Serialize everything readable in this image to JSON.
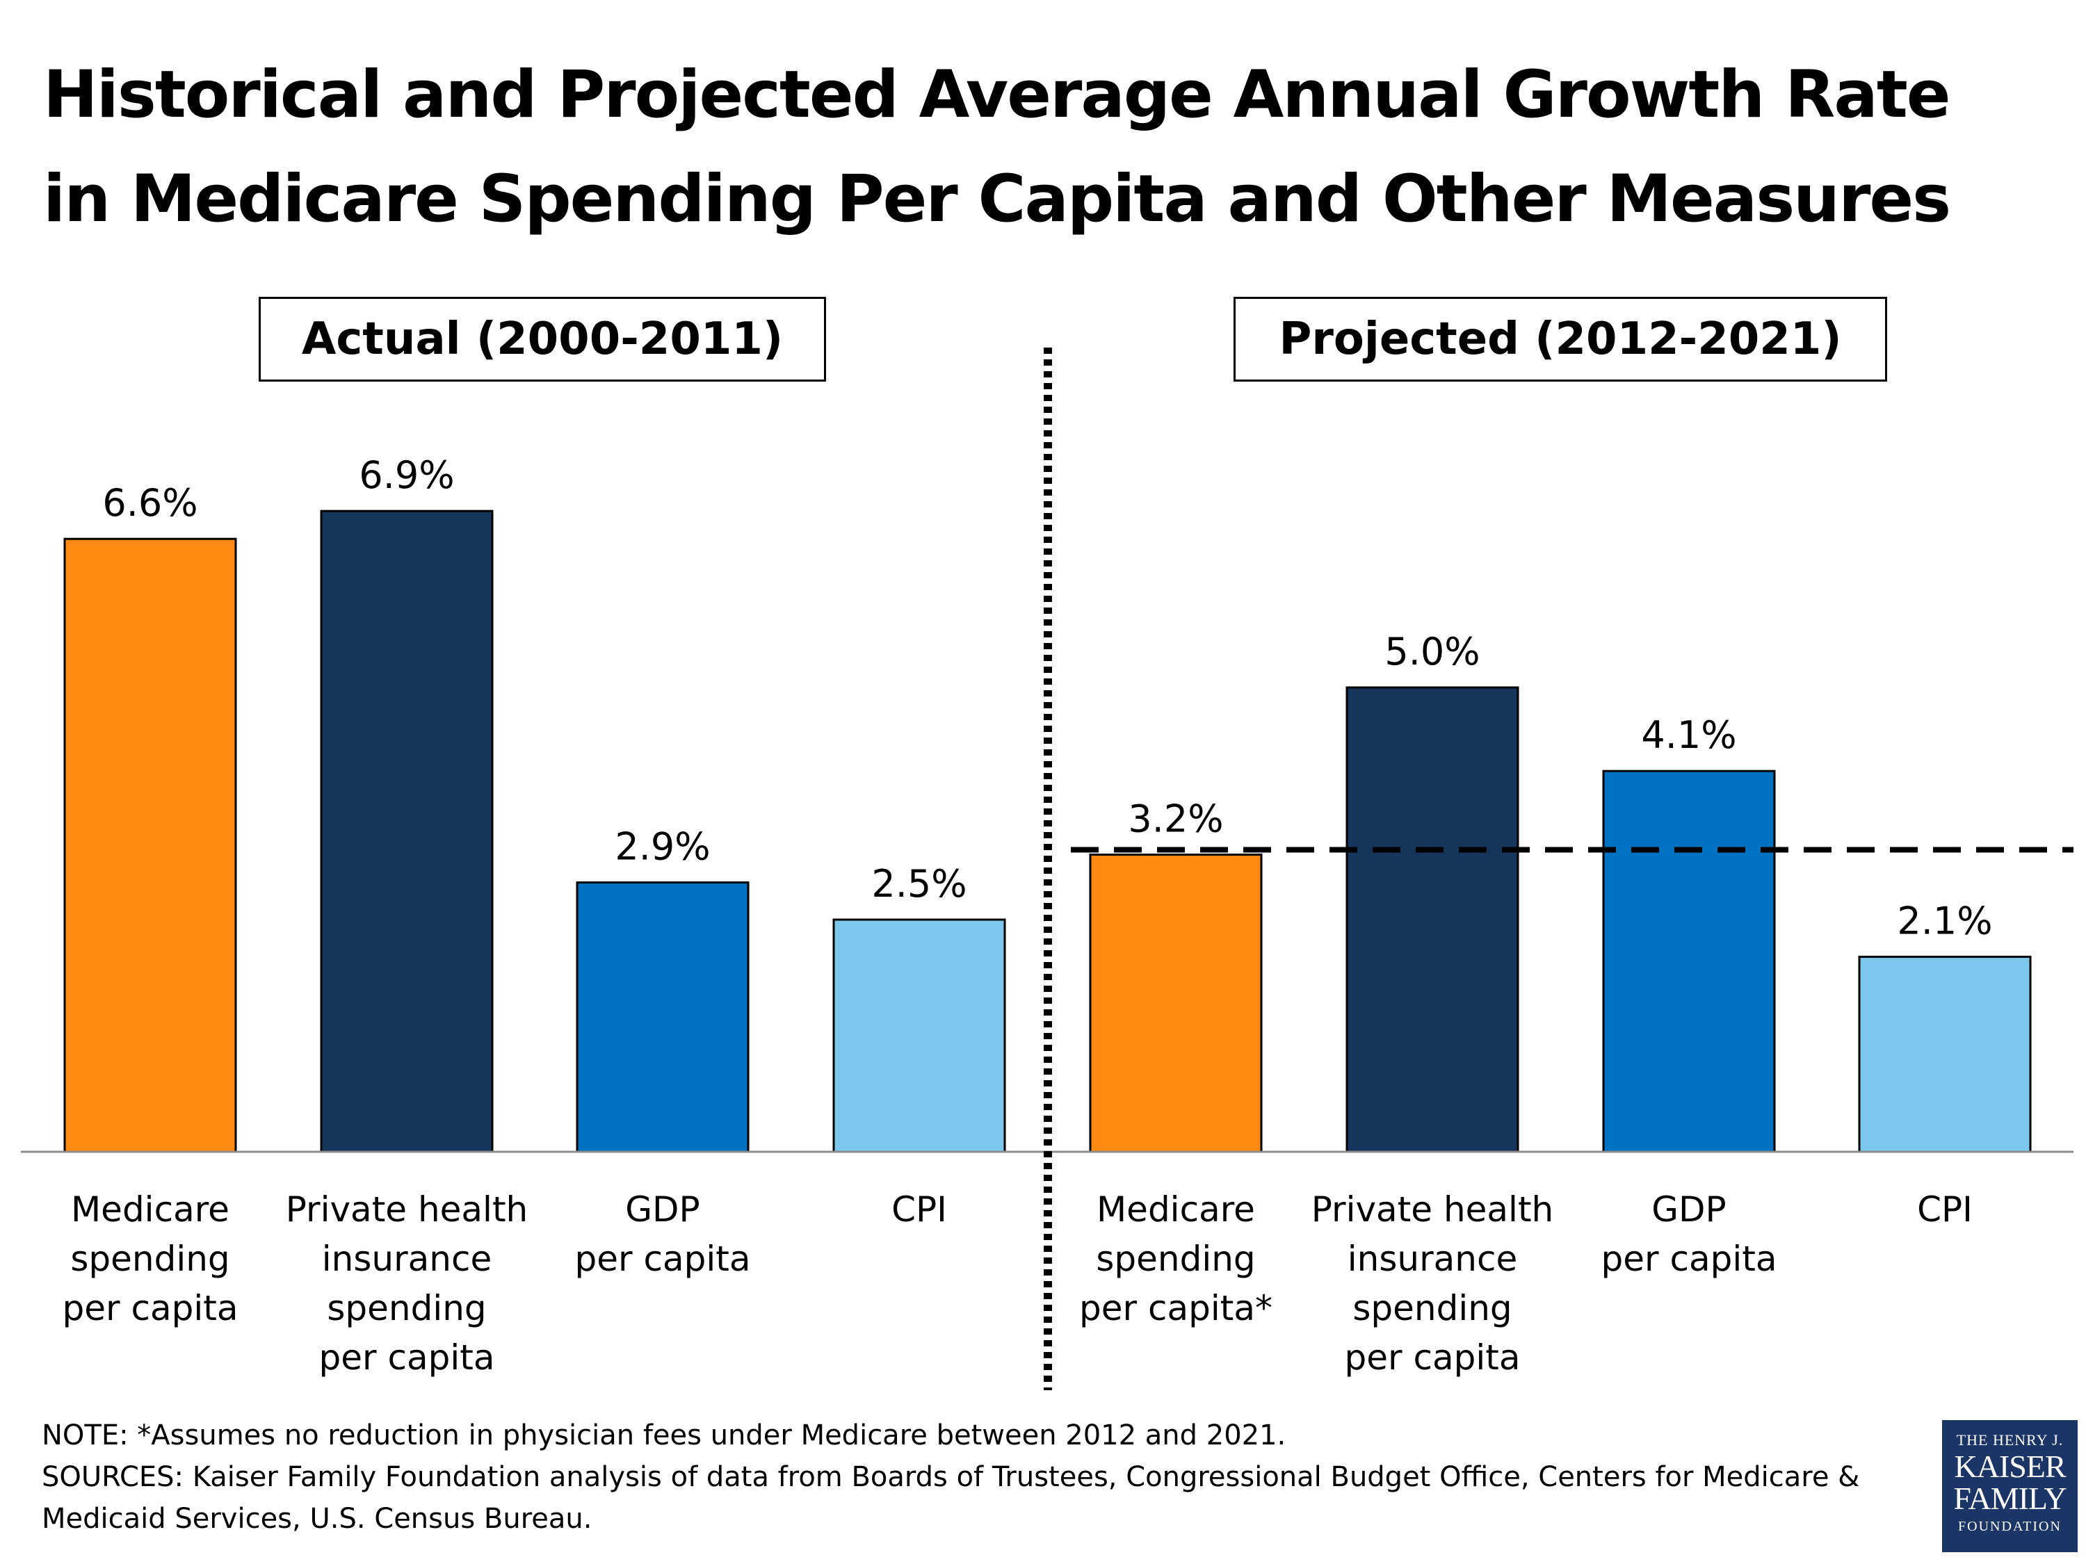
{
  "title": {
    "line1": "Historical and Projected Average Annual Growth Rate",
    "line2": "in Medicare Spending Per Capita and Other Measures"
  },
  "sections": {
    "actual": "Actual (2000-2011)",
    "projected": "Projected (2012-2021)"
  },
  "colors": {
    "medicare": "#FF8A12",
    "private": "#15355B",
    "gdp": "#0072C1",
    "cpi": "#7DC6EC"
  },
  "chart_data": {
    "type": "bar",
    "title": "Historical and Projected Average Annual Growth Rate in Medicare Spending Per Capita and Other Measures",
    "ylabel": "",
    "xlabel": "",
    "ylim": [
      0,
      7.5
    ],
    "grid": false,
    "reference_line": {
      "value": 3.2,
      "style": "dashed",
      "group": "Projected (2012-2021)"
    },
    "groups": [
      {
        "name": "Actual (2000-2011)",
        "bars": [
          {
            "category": "Medicare spending per capita",
            "label_lines": [
              "Medicare",
              "spending",
              "per capita"
            ],
            "value": 6.6,
            "label": "6.6%",
            "color_key": "medicare"
          },
          {
            "category": "Private health insurance spending per capita",
            "label_lines": [
              "Private health",
              "insurance",
              "spending",
              "per capita"
            ],
            "value": 6.9,
            "label": "6.9%",
            "color_key": "private"
          },
          {
            "category": "GDP per capita",
            "label_lines": [
              "GDP",
              "per capita"
            ],
            "value": 2.9,
            "label": "2.9%",
            "color_key": "gdp"
          },
          {
            "category": "CPI",
            "label_lines": [
              "CPI"
            ],
            "value": 2.5,
            "label": "2.5%",
            "color_key": "cpi"
          }
        ]
      },
      {
        "name": "Projected (2012-2021)",
        "bars": [
          {
            "category": "Medicare spending per capita*",
            "label_lines": [
              "Medicare",
              "spending",
              "per capita*"
            ],
            "value": 3.2,
            "label": "3.2%",
            "color_key": "medicare"
          },
          {
            "category": "Private health insurance spending per capita",
            "label_lines": [
              "Private health",
              "insurance",
              "spending",
              "per capita"
            ],
            "value": 5.0,
            "label": "5.0%",
            "color_key": "private"
          },
          {
            "category": "GDP per capita",
            "label_lines": [
              "GDP",
              "per capita"
            ],
            "value": 4.1,
            "label": "4.1%",
            "color_key": "gdp"
          },
          {
            "category": "CPI",
            "label_lines": [
              "CPI"
            ],
            "value": 2.1,
            "label": "2.1%",
            "color_key": "cpi"
          }
        ]
      }
    ]
  },
  "notes": {
    "note": "NOTE: *Assumes no reduction in physician fees under Medicare between 2012 and 2021.",
    "sources_line1": "SOURCES:  Kaiser Family Foundation analysis of data from Boards of Trustees, Congressional Budget Office, Centers for Medicare &",
    "sources_line2": "Medicaid Services, U.S. Census Bureau."
  },
  "logo": {
    "line1": "THE HENRY J.",
    "line2": "KAISER",
    "line3": "FAMILY",
    "line4": "FOUNDATION"
  }
}
